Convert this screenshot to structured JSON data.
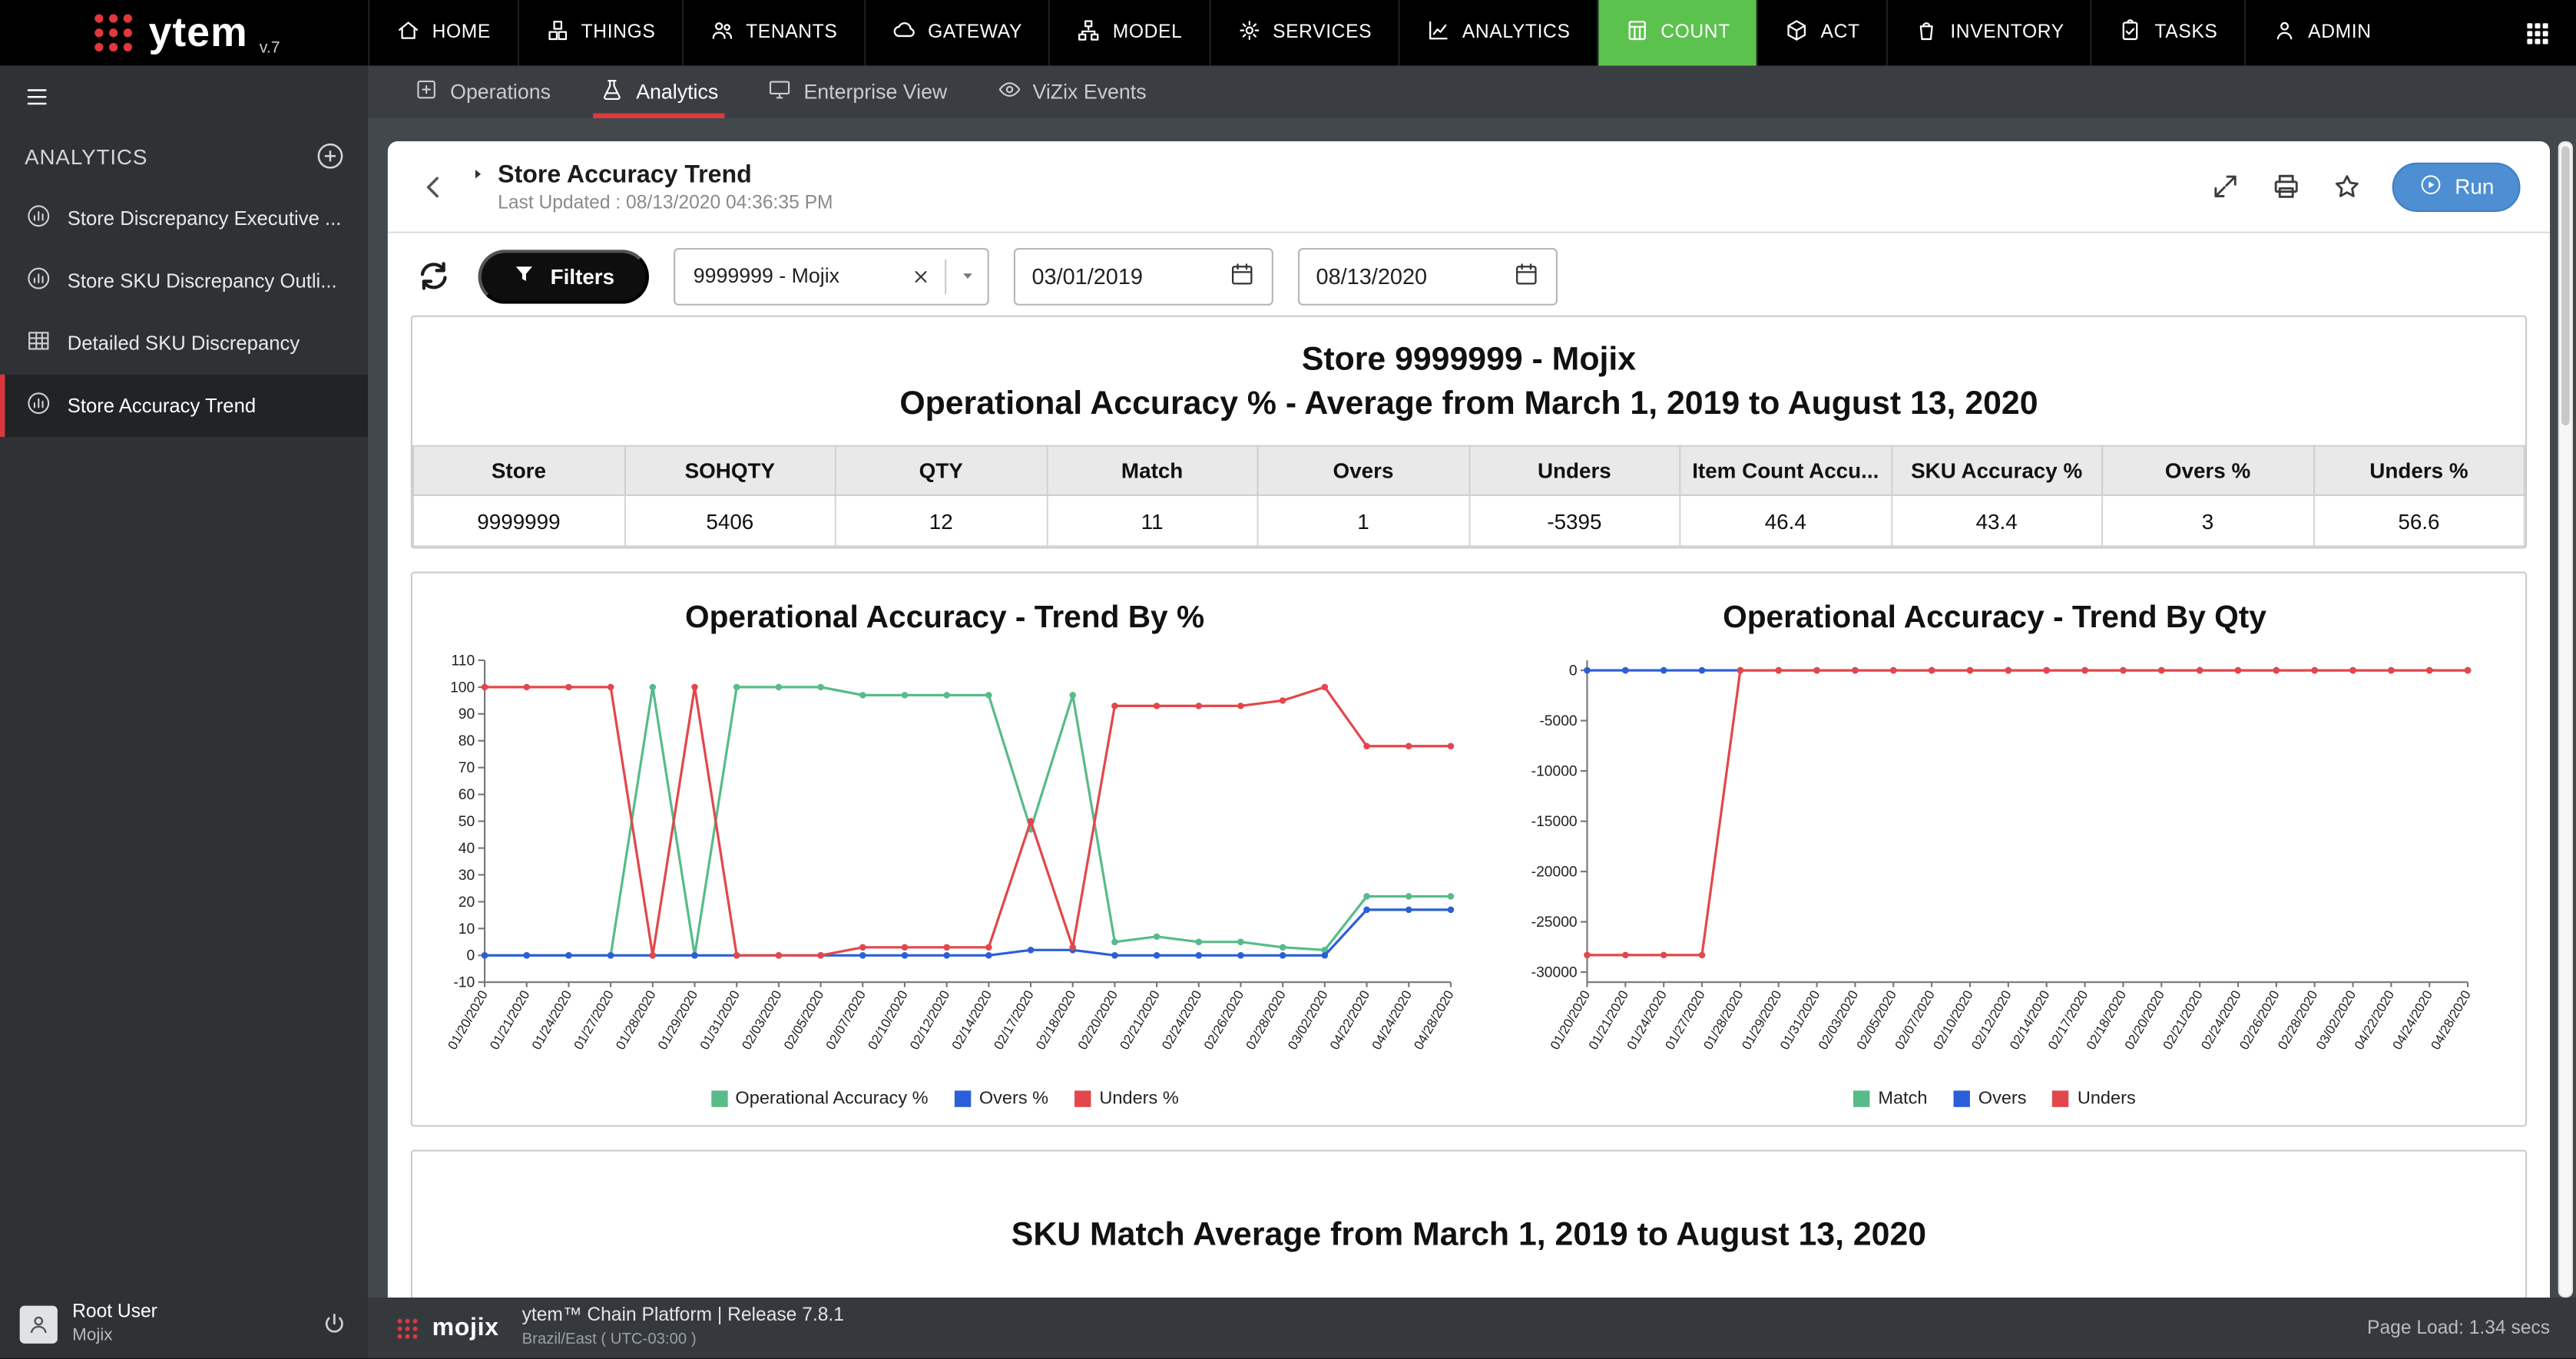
{
  "brand": {
    "logo_text": "ytem",
    "version": "v.7",
    "accent_red": "#e0383c"
  },
  "topnav": {
    "items": [
      {
        "label": "HOME"
      },
      {
        "label": "THINGS"
      },
      {
        "label": "TENANTS"
      },
      {
        "label": "GATEWAY"
      },
      {
        "label": "MODEL"
      },
      {
        "label": "SERVICES"
      },
      {
        "label": "ANALYTICS"
      },
      {
        "label": "COUNT"
      },
      {
        "label": "ACT"
      },
      {
        "label": "INVENTORY"
      },
      {
        "label": "TASKS"
      },
      {
        "label": "ADMIN"
      }
    ],
    "active": "COUNT",
    "active_color": "#5cc24e"
  },
  "subnav": {
    "items": [
      {
        "label": "Operations"
      },
      {
        "label": "Analytics"
      },
      {
        "label": "Enterprise View"
      },
      {
        "label": "ViZix Events"
      }
    ],
    "active": "Analytics",
    "underline_color": "#e0393d"
  },
  "sidebar": {
    "title": "ANALYTICS",
    "items": [
      {
        "label": "Store Discrepancy Executive ..."
      },
      {
        "label": "Store SKU Discrepancy Outli..."
      },
      {
        "label": "Detailed SKU Discrepancy"
      },
      {
        "label": "Store Accuracy Trend"
      }
    ],
    "active": "Store Accuracy Trend",
    "user": {
      "name": "Root User",
      "org": "Mojix"
    }
  },
  "report": {
    "title": "Store Accuracy Trend",
    "last_updated": "Last Updated : 08/13/2020 04:36:35 PM",
    "run_label": "Run",
    "filters_label": "Filters",
    "store_filter": "9999999 - Mojix",
    "date_from": "03/01/2019",
    "date_to": "08/13/2020"
  },
  "summary": {
    "title_line1": "Store 9999999 - Mojix",
    "title_line2": "Operational Accuracy % - Average from March 1, 2019 to August 13, 2020",
    "table": {
      "headers": [
        "Store",
        "SOHQTY",
        "QTY",
        "Match",
        "Overs",
        "Unders",
        "Item Count Accu...",
        "SKU Accuracy %",
        "Overs %",
        "Unders %"
      ],
      "row": [
        "9999999",
        "5406",
        "12",
        "11",
        "1",
        "-5395",
        "46.4",
        "43.4",
        "3",
        "56.6"
      ]
    }
  },
  "sku_panel": {
    "title": "SKU Match Average from March 1, 2019 to August 13, 2020"
  },
  "footer": {
    "logo_text": "mojix",
    "platform": "ytem™ Chain Platform | Release 7.8.1",
    "timezone": "Brazil/East ( UTC-03:00 )",
    "page_load": "Page Load: 1.34 secs"
  },
  "chart_data": [
    {
      "type": "line",
      "title": "Operational Accuracy - Trend By %",
      "x": [
        "01/20/2020",
        "01/21/2020",
        "01/24/2020",
        "01/27/2020",
        "01/28/2020",
        "01/29/2020",
        "01/31/2020",
        "02/03/2020",
        "02/05/2020",
        "02/07/2020",
        "02/10/2020",
        "02/12/2020",
        "02/14/2020",
        "02/17/2020",
        "02/18/2020",
        "02/20/2020",
        "02/21/2020",
        "02/24/2020",
        "02/26/2020",
        "02/28/2020",
        "03/02/2020",
        "04/22/2020",
        "04/24/2020",
        "04/28/2020"
      ],
      "ylim": [
        -10,
        110
      ],
      "yticks": [
        110,
        100,
        90,
        80,
        70,
        60,
        50,
        40,
        30,
        20,
        10,
        0,
        -10
      ],
      "grid": false,
      "legend_position": "bottom",
      "series": [
        {
          "name": "Operational Accuracy %",
          "color": "#57bb8a",
          "values": [
            0,
            0,
            0,
            0,
            100,
            0,
            100,
            100,
            100,
            97,
            97,
            97,
            97,
            47,
            97,
            5,
            7,
            5,
            5,
            3,
            2,
            22,
            22,
            22
          ]
        },
        {
          "name": "Overs %",
          "color": "#2b5fd9",
          "values": [
            0,
            0,
            0,
            0,
            0,
            0,
            0,
            0,
            0,
            0,
            0,
            0,
            0,
            2,
            2,
            0,
            0,
            0,
            0,
            0,
            0,
            17,
            17,
            17
          ]
        },
        {
          "name": "Unders %",
          "color": "#e2474b",
          "values": [
            100,
            100,
            100,
            100,
            0,
            100,
            0,
            0,
            0,
            3,
            3,
            3,
            3,
            50,
            3,
            93,
            93,
            93,
            93,
            95,
            100,
            78,
            78,
            78
          ]
        }
      ]
    },
    {
      "type": "line",
      "title": "Operational Accuracy - Trend By Qty",
      "x": [
        "01/20/2020",
        "01/21/2020",
        "01/24/2020",
        "01/27/2020",
        "01/28/2020",
        "01/29/2020",
        "01/31/2020",
        "02/03/2020",
        "02/05/2020",
        "02/07/2020",
        "02/10/2020",
        "02/12/2020",
        "02/14/2020",
        "02/17/2020",
        "02/18/2020",
        "02/20/2020",
        "02/21/2020",
        "02/24/2020",
        "02/26/2020",
        "02/28/2020",
        "03/02/2020",
        "04/22/2020",
        "04/24/2020",
        "04/28/2020"
      ],
      "ylim": [
        -31000,
        1000
      ],
      "yticks": [
        0,
        -5000,
        -10000,
        -15000,
        -20000,
        -25000,
        -30000
      ],
      "grid": false,
      "legend_position": "bottom",
      "series": [
        {
          "name": "Match",
          "color": "#57bb8a",
          "values": [
            0,
            0,
            0,
            0,
            0,
            0,
            0,
            0,
            0,
            0,
            0,
            0,
            0,
            0,
            0,
            0,
            0,
            0,
            0,
            0,
            0,
            0,
            0,
            0
          ]
        },
        {
          "name": "Overs",
          "color": "#2b5fd9",
          "values": [
            0,
            0,
            0,
            0,
            0,
            0,
            0,
            0,
            0,
            0,
            0,
            0,
            0,
            0,
            0,
            0,
            0,
            0,
            0,
            0,
            0,
            0,
            0,
            0
          ]
        },
        {
          "name": "Unders",
          "color": "#e2474b",
          "values": [
            -28300,
            -28300,
            -28300,
            -28300,
            0,
            0,
            0,
            0,
            0,
            0,
            0,
            0,
            0,
            0,
            0,
            0,
            0,
            0,
            0,
            0,
            0,
            0,
            0,
            0
          ]
        }
      ]
    }
  ]
}
